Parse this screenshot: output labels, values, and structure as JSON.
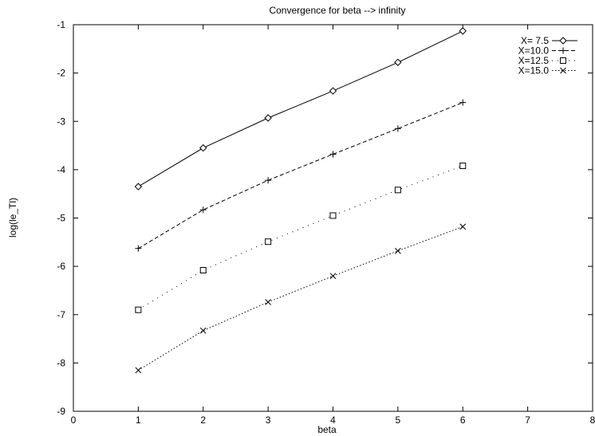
{
  "chart_data": {
    "type": "line",
    "title": "Convergence for beta --> infinity",
    "xlabel": "beta",
    "ylabel": "log(le_Tl)",
    "xlim": [
      0,
      8
    ],
    "ylim": [
      -9,
      -1
    ],
    "xticks": [
      "0",
      "1",
      "2",
      "3",
      "4",
      "5",
      "6",
      "7",
      "8"
    ],
    "yticks": [
      "-9",
      "-8",
      "-7",
      "-6",
      "-5",
      "-4",
      "-3",
      "-2",
      "-1"
    ],
    "grid": false,
    "legend_position": "top-right",
    "series": [
      {
        "name": "X= 7.5",
        "marker": "diamond",
        "line_style": "solid",
        "x": [
          1,
          2,
          3,
          4,
          5,
          6
        ],
        "y": [
          -4.35,
          -3.55,
          -2.93,
          -2.37,
          -1.78,
          -1.13
        ]
      },
      {
        "name": "X=10.0",
        "marker": "plus",
        "line_style": "dashed",
        "x": [
          1,
          2,
          3,
          4,
          5,
          6
        ],
        "y": [
          -5.63,
          -4.83,
          -4.22,
          -3.68,
          -3.15,
          -2.61
        ]
      },
      {
        "name": "X=12.5",
        "marker": "square",
        "line_style": "dash-dot",
        "x": [
          1,
          2,
          3,
          4,
          5,
          6
        ],
        "y": [
          -6.9,
          -6.08,
          -5.49,
          -4.95,
          -4.42,
          -3.92
        ]
      },
      {
        "name": "X=15.0",
        "marker": "cross",
        "line_style": "dotted",
        "x": [
          1,
          2,
          3,
          4,
          5,
          6
        ],
        "y": [
          -8.15,
          -7.33,
          -6.74,
          -6.2,
          -5.68,
          -5.18
        ]
      }
    ]
  }
}
